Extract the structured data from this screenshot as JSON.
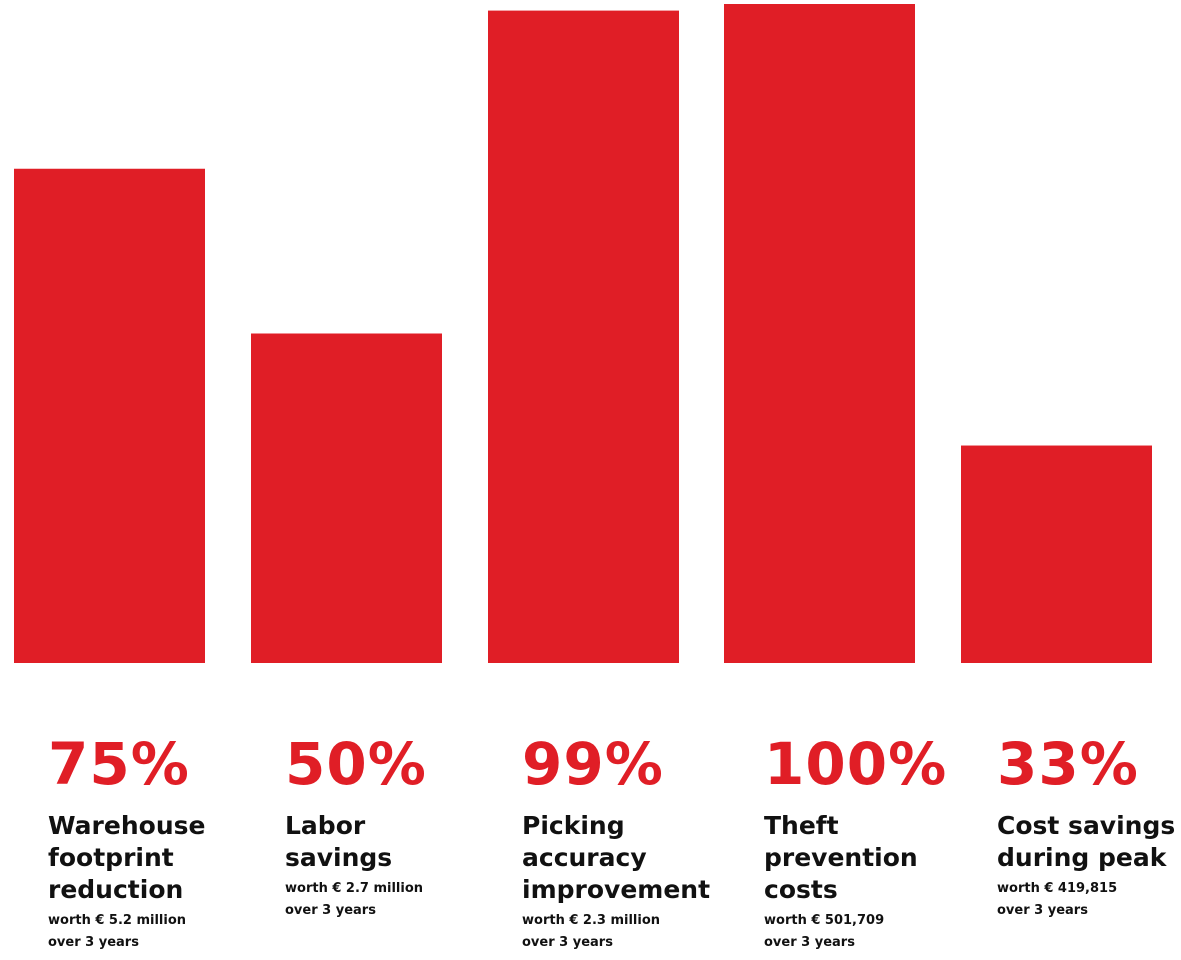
{
  "chart_data": {
    "type": "bar",
    "values": [
      75,
      50,
      99,
      100,
      33
    ],
    "ylim": [
      0,
      100
    ],
    "grid": false,
    "bar_color": "#e01e26",
    "items": [
      {
        "value": 75,
        "label": "75%",
        "description": "Warehouse\nfootprint\nreduction",
        "worth": "worth € 5.2 million\nover 3 years"
      },
      {
        "value": 50,
        "label": "50%",
        "description": "Labor\nsavings",
        "worth": "worth € 2.7 million\nover 3 years"
      },
      {
        "value": 99,
        "label": "99%",
        "description": "Picking\naccuracy\nimprovement",
        "worth": "worth € 2.3 million\nover 3 years"
      },
      {
        "value": 100,
        "label": "100%",
        "description": "Theft\nprevention\ncosts",
        "worth": "worth € 501,709\nover 3 years"
      },
      {
        "value": 33,
        "label": "33%",
        "description": "Cost savings\nduring peak",
        "worth": "worth € 419,815\nover 3 years"
      }
    ]
  }
}
